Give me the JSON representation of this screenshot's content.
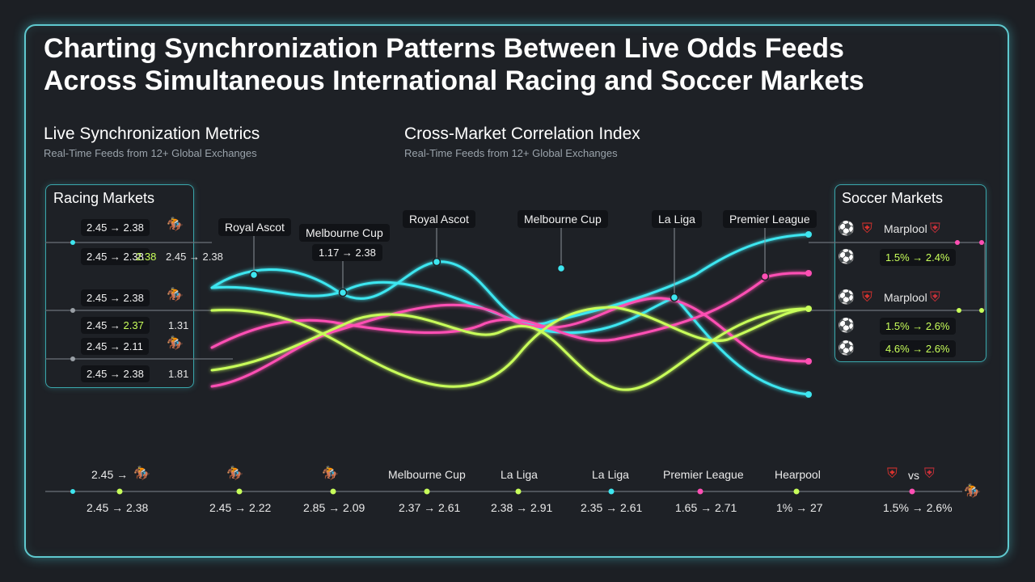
{
  "title": "Charting Synchronization Patterns Between Live Odds Feeds Across Simultaneous International Racing and Soccer Markets",
  "left_section": {
    "title": "Live Synchronization Metrics",
    "subtitle": "Real-Time Feeds from 12+ Global Exchanges"
  },
  "right_section": {
    "title": "Cross-Market Correlation Index",
    "subtitle": "Real-Time Feeds from 12+ Global Exchanges"
  },
  "racing_panel": {
    "title": "Racing Markets",
    "rows": [
      {
        "chip": "2.45 → 2.38",
        "icon": "horse-icon"
      },
      {
        "chip": "2.45 → 2.38",
        "chip_green": "2.38",
        "extra": "2.45 → 2.38"
      },
      {
        "chip": "2.45 → 2.38",
        "icon": "horse-icon"
      },
      {
        "chip": "2.45 → ",
        "chip_green": "2.37",
        "extra": "1.31"
      },
      {
        "chip": "2.45 → 2.11",
        "icon": "horse-icon"
      },
      {
        "chip": "2.45 → 2.38",
        "extra": "1.81"
      }
    ]
  },
  "soccer_panel": {
    "title": "Soccer Markets",
    "rows": [
      {
        "icon": "ball-icon",
        "team": "Marplool"
      },
      {
        "icon": "ball-icon",
        "value": "1.5% → 2.4%"
      },
      {
        "icon": "ball-icon",
        "team": "Marplool"
      },
      {
        "icon": "ball-icon",
        "value": "1.5% → 2.6%"
      },
      {
        "icon": "ball-icon",
        "value": "4.6% → 2.6%"
      }
    ]
  },
  "chart_data": {
    "type": "line",
    "title": "",
    "point_labels": [
      {
        "label": "Royal Ascot"
      },
      {
        "label": "Melbourne Cup",
        "value": "1.17 → 2.38"
      },
      {
        "label": "Royal Ascot"
      },
      {
        "label": "Melbourne Cup"
      },
      {
        "label": "La Liga"
      },
      {
        "label": "Premier League"
      }
    ],
    "series": [
      {
        "color": "#3ee6f0"
      },
      {
        "color": "#3ee6f0"
      },
      {
        "color": "#ff4fb4"
      },
      {
        "color": "#ff4fb4"
      },
      {
        "color": "#c8ff5a"
      },
      {
        "color": "#c8ff5a"
      }
    ]
  },
  "timeline": {
    "events": [
      {
        "label": "2.45 →",
        "value": "2.45 → 2.38",
        "value_green": true,
        "dot": "#c8ff5a"
      },
      {
        "label": "",
        "value": "2.45 → 2.22",
        "dot": "#c8ff5a"
      },
      {
        "label": "",
        "value": "2.85 → 2.09",
        "dot": "#c8ff5a"
      },
      {
        "label": "Melbourne Cup",
        "value": "2.37 → 2.61",
        "dot": "#c8ff5a"
      },
      {
        "label": "La Liga",
        "value": "2.38 → 2.91",
        "value_green": true,
        "dot": "#c8ff5a"
      },
      {
        "label": "La Liga",
        "value": "2.35 → 2.61",
        "dot": "#3ee6f0"
      },
      {
        "label": "Premier League",
        "value": "1.65 → 2.71",
        "dot": "#ff4fb4"
      },
      {
        "label": "Hearpool",
        "value": "1% → 27",
        "dot": "#c8ff5a"
      },
      {
        "label": "vs",
        "value": "1.5% → 2.6%",
        "dot": "#ff4fb4"
      }
    ]
  },
  "colors": {
    "cyan": "#3ee6f0",
    "pink": "#ff4fb4",
    "lime": "#c8ff5a",
    "frame": "#5fc9cf"
  }
}
